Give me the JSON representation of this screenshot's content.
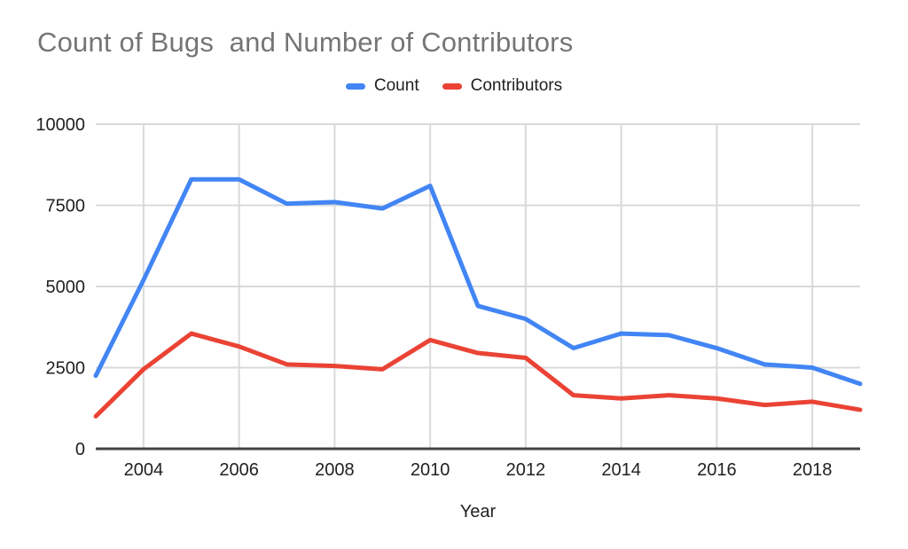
{
  "header": {
    "title": "Count of Bugs  and Number of Contributors",
    "title_color": "#757575"
  },
  "legend": [
    {
      "label": "Count",
      "color": "#4285F4"
    },
    {
      "label": "Contributors",
      "color": "#EA4335"
    }
  ],
  "axis": {
    "x_title": "Year"
  },
  "colors": {
    "gridline": "#d9d9d9",
    "axis_line": "#424242",
    "tick_text": "#202124"
  },
  "chart_data": {
    "type": "line",
    "title": "Count of Bugs  and Number of Contributors",
    "xlabel": "Year",
    "ylabel": "",
    "x": [
      2003,
      2004,
      2005,
      2006,
      2007,
      2008,
      2009,
      2010,
      2011,
      2012,
      2013,
      2014,
      2015,
      2016,
      2017,
      2018,
      2019
    ],
    "series": [
      {
        "name": "Count",
        "color": "#4285F4",
        "values": [
          2250,
          5200,
          8300,
          8300,
          7550,
          7600,
          7400,
          8100,
          4400,
          4000,
          3100,
          3550,
          3500,
          3100,
          2600,
          2500,
          2000
        ]
      },
      {
        "name": "Contributors",
        "color": "#EA4335",
        "values": [
          1000,
          2450,
          3550,
          3150,
          2600,
          2550,
          2450,
          3350,
          2950,
          2800,
          1650,
          1550,
          1650,
          1550,
          1350,
          1450,
          1200
        ]
      }
    ],
    "xlim": [
      2003,
      2019
    ],
    "ylim": [
      0,
      10000
    ],
    "y_ticks": [
      0,
      2500,
      5000,
      7500,
      10000
    ],
    "x_ticks": [
      2004,
      2006,
      2008,
      2010,
      2012,
      2014,
      2016,
      2018
    ],
    "grid": true,
    "legend_position": "top"
  }
}
